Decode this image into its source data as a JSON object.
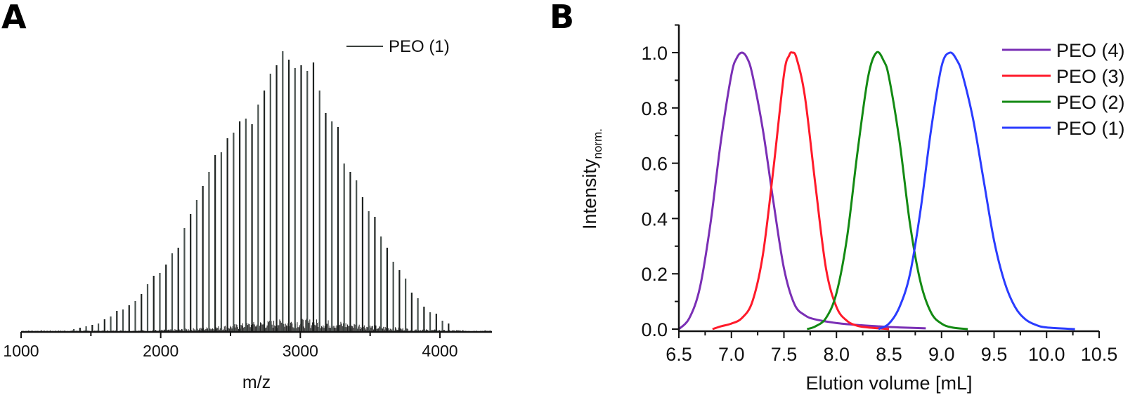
{
  "panels": {
    "a_label": "A",
    "b_label": "B"
  },
  "chart_data": [
    {
      "id": "A",
      "type": "bar",
      "title": "",
      "xlabel": "m/z",
      "ylabel": "",
      "xlim": [
        1000,
        4370
      ],
      "ylim": [
        0,
        1.0
      ],
      "x_ticks": [
        1000,
        1500,
        2000,
        2500,
        3000,
        3500,
        4000
      ],
      "x_tick_labels": [
        "1000",
        "",
        "2000",
        "",
        "3000",
        "",
        "4000"
      ],
      "y_axis_visible": false,
      "grid": false,
      "legend": {
        "position": "top-right",
        "entries": [
          {
            "label": "PEO (1)",
            "color": "#3a3f3c"
          }
        ]
      },
      "series": [
        {
          "name": "PEO (1)",
          "color": "#2b2f2d",
          "repeat_unit_mz": 44,
          "x": [
            1378,
            1422,
            1466,
            1510,
            1554,
            1598,
            1642,
            1686,
            1730,
            1774,
            1818,
            1862,
            1906,
            1950,
            1994,
            2038,
            2082,
            2126,
            2170,
            2214,
            2258,
            2302,
            2346,
            2390,
            2434,
            2478,
            2522,
            2566,
            2610,
            2654,
            2698,
            2742,
            2786,
            2830,
            2874,
            2918,
            2962,
            3006,
            3050,
            3094,
            3138,
            3182,
            3226,
            3270,
            3314,
            3358,
            3402,
            3446,
            3490,
            3534,
            3578,
            3622,
            3666,
            3710,
            3754,
            3798,
            3842,
            3886,
            3930,
            3974,
            4018,
            4062
          ],
          "values": [
            0.01,
            0.015,
            0.02,
            0.025,
            0.03,
            0.045,
            0.055,
            0.075,
            0.08,
            0.095,
            0.11,
            0.135,
            0.17,
            0.2,
            0.21,
            0.24,
            0.28,
            0.3,
            0.37,
            0.42,
            0.47,
            0.52,
            0.57,
            0.63,
            0.64,
            0.69,
            0.71,
            0.75,
            0.76,
            0.74,
            0.81,
            0.86,
            0.92,
            0.95,
            1.0,
            0.97,
            0.94,
            0.95,
            0.93,
            0.96,
            0.86,
            0.78,
            0.75,
            0.73,
            0.6,
            0.57,
            0.54,
            0.48,
            0.43,
            0.41,
            0.34,
            0.3,
            0.25,
            0.22,
            0.19,
            0.14,
            0.12,
            0.09,
            0.07,
            0.065,
            0.04,
            0.03
          ],
          "noise_floor": 0.03
        }
      ]
    },
    {
      "id": "B",
      "type": "line",
      "title": "",
      "xlabel": "Elution volume [mL]",
      "ylabel": "Intensity",
      "ylabel_subscript": "norm.",
      "xlim": [
        6.5,
        10.5
      ],
      "ylim": [
        0.0,
        1.1
      ],
      "x_ticks": [
        6.5,
        7.0,
        7.5,
        8.0,
        8.5,
        9.0,
        9.5,
        10.0,
        10.5
      ],
      "x_tick_labels": [
        "6.5",
        "7.0",
        "7.5",
        "8.0",
        "8.5",
        "9.0",
        "9.5",
        "10.0",
        "10.5"
      ],
      "y_ticks": [
        0.0,
        0.2,
        0.4,
        0.6,
        0.8,
        1.0
      ],
      "y_tick_labels": [
        "0.0",
        "0.2",
        "0.4",
        "0.6",
        "0.8",
        "1.0"
      ],
      "grid": false,
      "legend": {
        "position": "top-right",
        "entries": [
          {
            "label": "PEO (4)",
            "color": "#7a2fb5"
          },
          {
            "label": "PEO (3)",
            "color": "#ff1a2a"
          },
          {
            "label": "PEO (2)",
            "color": "#138a13"
          },
          {
            "label": "PEO (1)",
            "color": "#2a3cff"
          }
        ]
      },
      "series": [
        {
          "name": "PEO (4)",
          "color": "#7a2fb5",
          "x": [
            6.5,
            6.6,
            6.7,
            6.8,
            6.9,
            7.0,
            7.05,
            7.1,
            7.15,
            7.2,
            7.3,
            7.4,
            7.5,
            7.6,
            7.7,
            7.8,
            8.0,
            8.2,
            8.4,
            8.6,
            8.85
          ],
          "values": [
            0.0,
            0.04,
            0.15,
            0.38,
            0.68,
            0.92,
            0.98,
            1.0,
            0.98,
            0.92,
            0.72,
            0.46,
            0.22,
            0.09,
            0.05,
            0.035,
            0.022,
            0.015,
            0.01,
            0.006,
            0.003
          ]
        },
        {
          "name": "PEO (3)",
          "color": "#ff1a2a",
          "x": [
            6.82,
            6.9,
            7.0,
            7.1,
            7.2,
            7.3,
            7.4,
            7.5,
            7.55,
            7.58,
            7.62,
            7.7,
            7.8,
            7.9,
            8.0,
            8.1,
            8.2,
            8.3,
            8.4,
            8.5
          ],
          "values": [
            0.0,
            0.01,
            0.02,
            0.04,
            0.1,
            0.27,
            0.58,
            0.92,
            0.99,
            1.0,
            0.98,
            0.84,
            0.52,
            0.22,
            0.08,
            0.03,
            0.012,
            0.006,
            0.003,
            0.0
          ]
        },
        {
          "name": "PEO (2)",
          "color": "#138a13",
          "x": [
            7.72,
            7.8,
            7.9,
            8.0,
            8.1,
            8.2,
            8.3,
            8.38,
            8.45,
            8.5,
            8.6,
            8.7,
            8.8,
            8.9,
            9.0,
            9.1,
            9.25
          ],
          "values": [
            0.0,
            0.01,
            0.04,
            0.13,
            0.33,
            0.64,
            0.91,
            1.0,
            0.97,
            0.91,
            0.68,
            0.38,
            0.17,
            0.06,
            0.02,
            0.006,
            0.0
          ]
        },
        {
          "name": "PEO (1)",
          "color": "#2a3cff",
          "x": [
            8.4,
            8.5,
            8.6,
            8.7,
            8.8,
            8.9,
            9.0,
            9.08,
            9.15,
            9.2,
            9.3,
            9.4,
            9.5,
            9.6,
            9.7,
            9.8,
            9.9,
            10.0,
            10.27
          ],
          "values": [
            0.0,
            0.02,
            0.08,
            0.2,
            0.43,
            0.72,
            0.95,
            1.0,
            0.97,
            0.92,
            0.76,
            0.54,
            0.32,
            0.17,
            0.08,
            0.035,
            0.015,
            0.006,
            0.0
          ]
        }
      ]
    }
  ]
}
